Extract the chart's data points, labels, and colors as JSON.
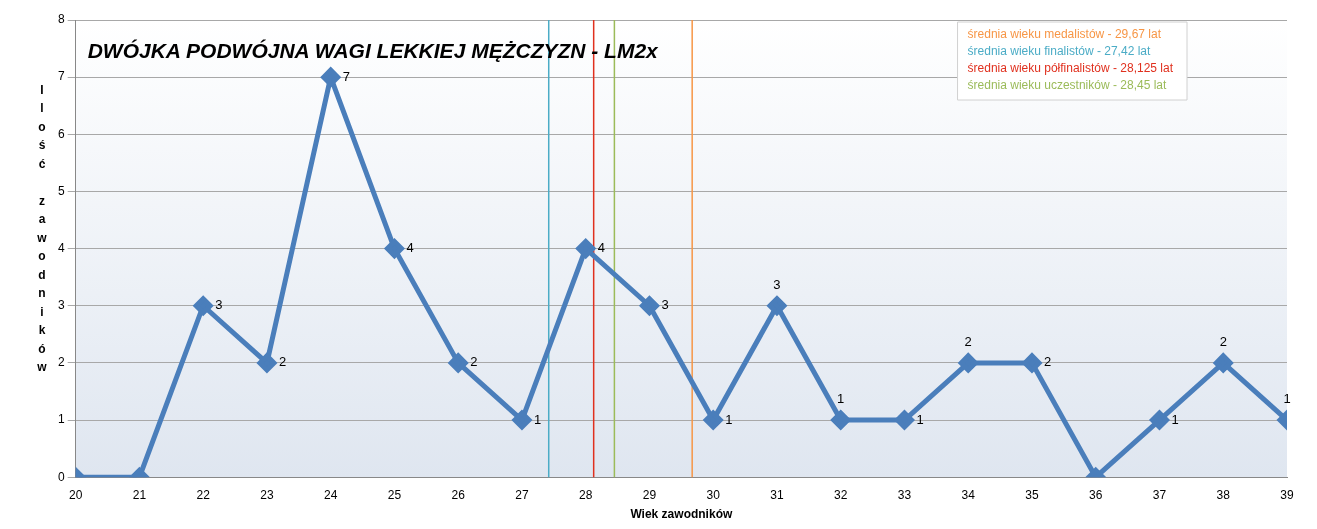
{
  "chart_data": {
    "type": "line",
    "title": "DWÓJKA PODWÓJNA WAGI LEKKIEJ MĘŻCZYZN - LM2x",
    "xlabel": "Wiek zawodników",
    "ylabel": "Ilość zawodników",
    "x": [
      20,
      21,
      22,
      23,
      24,
      25,
      26,
      27,
      28,
      29,
      30,
      31,
      32,
      33,
      34,
      35,
      36,
      37,
      38,
      39
    ],
    "series": [
      {
        "color": "#4a7ebb",
        "values": [
          0,
          0,
          3,
          2,
          7,
          4,
          2,
          1,
          4,
          3,
          1,
          3,
          1,
          1,
          2,
          2,
          0,
          1,
          2,
          1
        ],
        "value_labels": [
          null,
          null,
          "3",
          "2",
          "7",
          "4",
          "2",
          "1",
          "4",
          "3",
          "1",
          "3",
          "1",
          "1",
          "2",
          "2",
          null,
          "1",
          "2",
          "1"
        ]
      }
    ],
    "xlim": [
      20,
      39
    ],
    "xticks": [
      20,
      21,
      22,
      23,
      24,
      25,
      26,
      27,
      28,
      29,
      30,
      31,
      32,
      33,
      34,
      35,
      36,
      37,
      38,
      39
    ],
    "ylim": [
      0,
      8
    ],
    "yticks": [
      0,
      1,
      2,
      3,
      4,
      5,
      6,
      7,
      8
    ],
    "grid": "y",
    "marker": "diamond",
    "line_style": "solid",
    "legend": false,
    "ref_lines": [
      {
        "axis": "x",
        "value": 29.67,
        "label": "średnia wieku medalistów - 29,67 lat",
        "color": "#f79646"
      },
      {
        "axis": "x",
        "value": 27.42,
        "label": "średnia wieku finalistów - 27,42 lat",
        "color": "#4bacc6"
      },
      {
        "axis": "x",
        "value": 28.125,
        "label": "średnia wieku półfinalistów - 28,125 lat",
        "color": "#e0301e"
      },
      {
        "axis": "x",
        "value": 28.45,
        "label": "średnia wieku uczestników - 28,45 lat",
        "color": "#9bbb59"
      }
    ]
  }
}
